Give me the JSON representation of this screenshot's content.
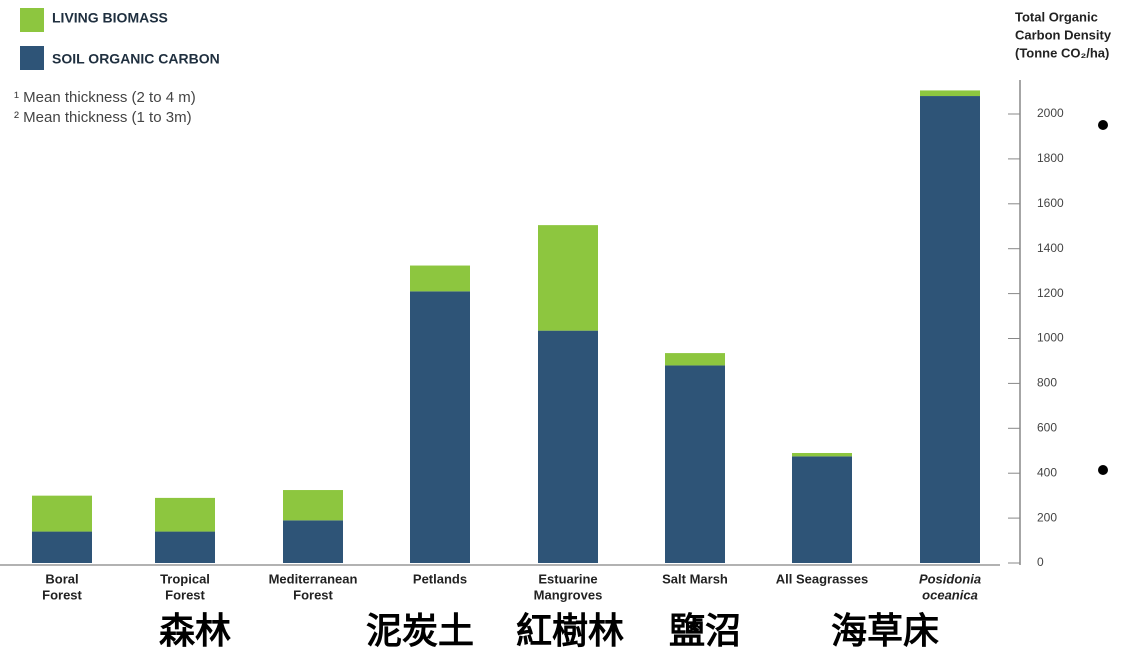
{
  "chart_data": {
    "type": "stacked_bar",
    "legend": [
      "LIVING BIOMASS",
      "SOIL ORGANIC CARBON"
    ],
    "notes": [
      "¹ Mean thickness (2 to 4 m)",
      "² Mean thickness (1 to 3m)"
    ],
    "y_label_lines": [
      "Total Organic",
      "Carbon Density",
      "(Tonne CO₂/ha)"
    ],
    "categories": [
      [
        "Boral",
        "Forest"
      ],
      [
        "Tropical",
        "Forest"
      ],
      [
        "Mediterranean",
        "Forest"
      ],
      [
        "Petlands"
      ],
      [
        "Estuarine",
        "Mangroves"
      ],
      [
        "Salt Marsh"
      ],
      [
        "All Seagrasses"
      ],
      [
        "Posidonia",
        "oceanica"
      ]
    ],
    "series": [
      {
        "name": "SOIL ORGANIC CARBON",
        "color": "#2e5477",
        "values": [
          140,
          140,
          190,
          1210,
          1035,
          880,
          475,
          2080
        ]
      },
      {
        "name": "LIVING BIOMASS",
        "color": "#8dc63f",
        "values": [
          160,
          150,
          135,
          115,
          470,
          55,
          15,
          25
        ]
      }
    ],
    "ylim": [
      0,
      2200
    ],
    "yticks": [
      0,
      200,
      400,
      600,
      800,
      1000,
      1200,
      1400,
      1600,
      1800,
      2000
    ],
    "annotations": [
      "森林",
      "泥炭土",
      "紅樹林",
      "鹽沼",
      "海草床"
    ]
  }
}
